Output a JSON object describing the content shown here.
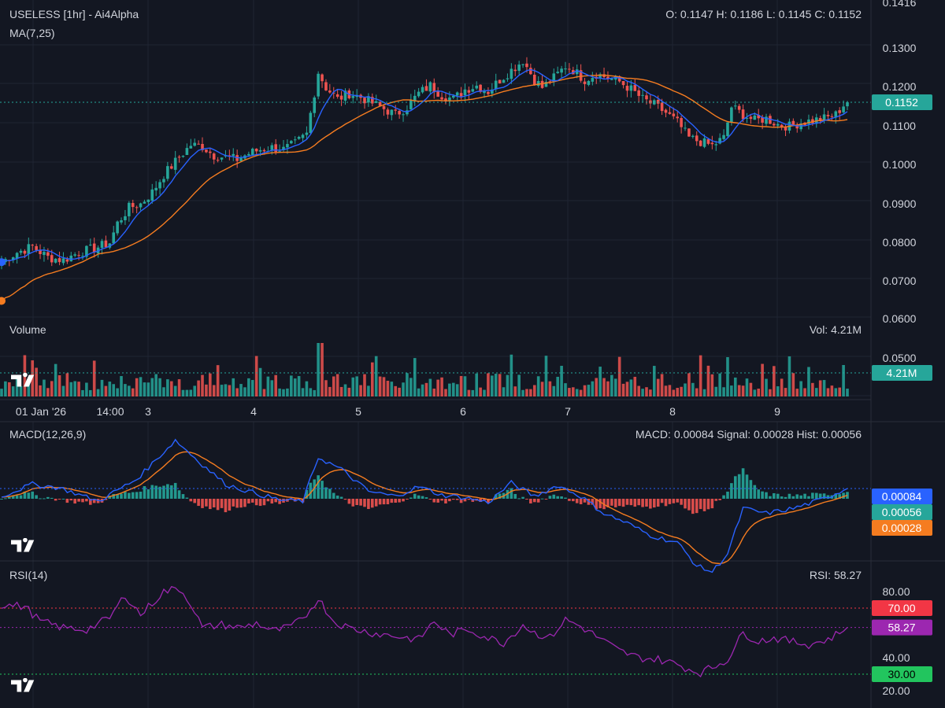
{
  "price_pane": {
    "title": "USELESS [1hr] - Ai4Alpha",
    "ma_label": "MA(7,25)",
    "ohlc": "O: 0.1147 H: 0.1186 L: 0.1145 C: 0.1152"
  },
  "volume_pane": {
    "title": "Volume",
    "value_text": "Vol: 4.21M"
  },
  "macd_pane": {
    "title": "MACD(12,26,9)",
    "value_text": "MACD: 0.00084 Signal: 0.00028 Hist: 0.00056"
  },
  "rsi_pane": {
    "title": "RSI(14)",
    "value_text": "RSI: 58.27"
  },
  "colors": {
    "background": "#131722",
    "grid": "#1f2433",
    "up": "#26a69a",
    "down": "#ef5350",
    "ma7": "#2962ff",
    "ma25": "#f57c20",
    "rsi": "#9c27b0",
    "rsi_upper": "#f23645",
    "rsi_lower": "#22c55e"
  },
  "chart_data": [
    {
      "type": "candlestick",
      "title": "USELESS [1hr] - Ai4Alpha",
      "ylim": [
        0.055,
        0.142
      ],
      "y_ticks": [
        "0.0500",
        "0.0600",
        "0.0700",
        "0.0800",
        "0.0900",
        "0.1000",
        "0.1100",
        "0.1200",
        "0.1300",
        "0.1416"
      ],
      "x_ticks": [
        "01 Jan '26",
        "14:00",
        "3",
        "4",
        "5",
        "6",
        "7",
        "8",
        "9"
      ],
      "series": [
        {
          "name": "MA(7,25)",
          "shape": "moving averages",
          "periods": [
            7,
            25
          ]
        }
      ],
      "last_price": "0.1152",
      "close_anchors": [
        [
          0,
          0.074
        ],
        [
          4,
          0.0765
        ],
        [
          8,
          0.078
        ],
        [
          12,
          0.0752
        ],
        [
          16,
          0.0745
        ],
        [
          20,
          0.0765
        ],
        [
          24,
          0.0775
        ],
        [
          28,
          0.079
        ],
        [
          30,
          0.084
        ],
        [
          33,
          0.088
        ],
        [
          36,
          0.089
        ],
        [
          39,
          0.092
        ],
        [
          42,
          0.0965
        ],
        [
          46,
          0.101
        ],
        [
          49,
          0.1042
        ],
        [
          52,
          0.1038
        ],
        [
          55,
          0.1015
        ],
        [
          58,
          0.101
        ],
        [
          61,
          0.1005
        ],
        [
          64,
          0.102
        ],
        [
          67,
          0.103
        ],
        [
          70,
          0.1035
        ],
        [
          73,
          0.103
        ],
        [
          76,
          0.1045
        ],
        [
          79,
          0.107
        ],
        [
          82,
          0.123
        ],
        [
          84,
          0.119
        ],
        [
          87,
          0.116
        ],
        [
          90,
          0.1175
        ],
        [
          93,
          0.1165
        ],
        [
          96,
          0.115
        ],
        [
          99,
          0.1135
        ],
        [
          102,
          0.112
        ],
        [
          105,
          0.114
        ],
        [
          108,
          0.1175
        ],
        [
          111,
          0.1195
        ],
        [
          114,
          0.117
        ],
        [
          117,
          0.116
        ],
        [
          120,
          0.1185
        ],
        [
          123,
          0.1195
        ],
        [
          126,
          0.118
        ],
        [
          129,
          0.121
        ],
        [
          132,
          0.1235
        ],
        [
          135,
          0.126
        ],
        [
          138,
          0.121
        ],
        [
          140,
          0.119
        ],
        [
          143,
          0.1215
        ],
        [
          146,
          0.1245
        ],
        [
          148,
          0.1235
        ],
        [
          151,
          0.121
        ],
        [
          154,
          0.1225
        ],
        [
          157,
          0.1215
        ],
        [
          160,
          0.1205
        ],
        [
          163,
          0.1185
        ],
        [
          166,
          0.116
        ],
        [
          169,
          0.1145
        ],
        [
          172,
          0.1125
        ],
        [
          175,
          0.11
        ],
        [
          178,
          0.106
        ],
        [
          181,
          0.105
        ],
        [
          184,
          0.104
        ],
        [
          187,
          0.106
        ],
        [
          189,
          0.114
        ],
        [
          192,
          0.112
        ],
        [
          195,
          0.1105
        ],
        [
          198,
          0.111
        ],
        [
          201,
          0.1095
        ],
        [
          204,
          0.109
        ],
        [
          207,
          0.11
        ],
        [
          210,
          0.1105
        ],
        [
          213,
          0.111
        ],
        [
          216,
          0.112
        ],
        [
          218,
          0.1145
        ],
        [
          219,
          0.1152
        ]
      ]
    },
    {
      "type": "bar",
      "title": "Volume",
      "value_text": "Vol: 4.21M",
      "last_value": "4.21M",
      "count": 220
    },
    {
      "type": "line",
      "title": "MACD(12,26,9)",
      "series": [
        {
          "name": "MACD",
          "last": "0.00084"
        },
        {
          "name": "Signal",
          "last": "0.00028"
        },
        {
          "name": "Hist",
          "last": "0.00056"
        }
      ],
      "macd_anchors": [
        [
          0,
          0.0002
        ],
        [
          8,
          0.0012
        ],
        [
          15,
          0.0009
        ],
        [
          25,
          -0.0002
        ],
        [
          35,
          0.0016
        ],
        [
          45,
          0.0048
        ],
        [
          52,
          0.0028
        ],
        [
          58,
          0.0012
        ],
        [
          64,
          0.0006
        ],
        [
          72,
          -0.0001
        ],
        [
          78,
          -0.0002
        ],
        [
          82,
          0.0034
        ],
        [
          88,
          0.0024
        ],
        [
          95,
          0.0006
        ],
        [
          102,
          0.0002
        ],
        [
          108,
          0.001
        ],
        [
          114,
          0.0003
        ],
        [
          120,
          0.0001
        ],
        [
          126,
          -0.0003
        ],
        [
          132,
          0.0013
        ],
        [
          138,
          0.0002
        ],
        [
          144,
          0.0011
        ],
        [
          150,
          0.0002
        ],
        [
          156,
          -0.0012
        ],
        [
          162,
          -0.002
        ],
        [
          168,
          -0.003
        ],
        [
          175,
          -0.0036
        ],
        [
          180,
          -0.0055
        ],
        [
          184,
          -0.006
        ],
        [
          188,
          -0.0045
        ],
        [
          192,
          -0.0008
        ],
        [
          198,
          -0.0012
        ],
        [
          205,
          -0.0008
        ],
        [
          212,
          -0.0001
        ],
        [
          219,
          0.00084
        ]
      ]
    },
    {
      "type": "line",
      "title": "RSI(14)",
      "ylim": [
        15,
        90
      ],
      "y_ticks": [
        "80.00",
        "40.00",
        "20.00"
      ],
      "upper_band": "70.00",
      "lower_band": "30.00",
      "last": "58.27",
      "rsi_anchors": [
        [
          0,
          72
        ],
        [
          6,
          71
        ],
        [
          10,
          62
        ],
        [
          16,
          58
        ],
        [
          22,
          57
        ],
        [
          28,
          64
        ],
        [
          32,
          78
        ],
        [
          36,
          66
        ],
        [
          42,
          80
        ],
        [
          46,
          82
        ],
        [
          49,
          73
        ],
        [
          52,
          58
        ],
        [
          57,
          60
        ],
        [
          62,
          58
        ],
        [
          66,
          61
        ],
        [
          70,
          56
        ],
        [
          74,
          58
        ],
        [
          78,
          63
        ],
        [
          82,
          76
        ],
        [
          86,
          62
        ],
        [
          90,
          58
        ],
        [
          96,
          55
        ],
        [
          102,
          53
        ],
        [
          108,
          51
        ],
        [
          112,
          62
        ],
        [
          116,
          54
        ],
        [
          121,
          57
        ],
        [
          126,
          52
        ],
        [
          130,
          49
        ],
        [
          135,
          60
        ],
        [
          138,
          55
        ],
        [
          142,
          52
        ],
        [
          146,
          63
        ],
        [
          149,
          60
        ],
        [
          152,
          56
        ],
        [
          156,
          50
        ],
        [
          160,
          44
        ],
        [
          165,
          40
        ],
        [
          170,
          39
        ],
        [
          175,
          36
        ],
        [
          178,
          33
        ],
        [
          181,
          31
        ],
        [
          184,
          34
        ],
        [
          188,
          39
        ],
        [
          192,
          55
        ],
        [
          196,
          50
        ],
        [
          200,
          52
        ],
        [
          204,
          50
        ],
        [
          209,
          48
        ],
        [
          214,
          51
        ],
        [
          219,
          58
        ]
      ]
    }
  ]
}
